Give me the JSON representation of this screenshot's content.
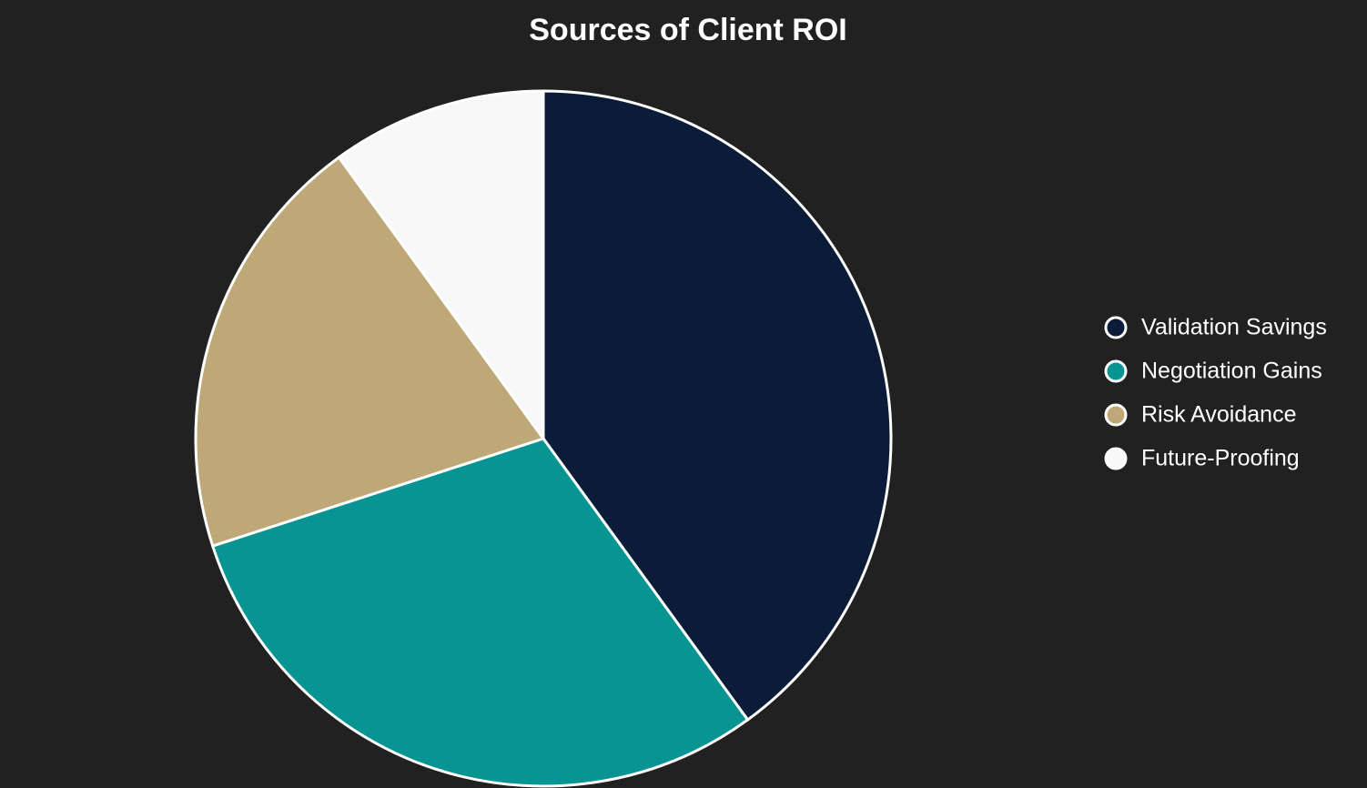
{
  "chart_data": {
    "type": "pie",
    "title": "Sources of Client ROI",
    "categories": [
      "Validation Savings",
      "Negotiation Gains",
      "Risk Avoidance",
      "Future-Proofing"
    ],
    "values": [
      40,
      30,
      20,
      10
    ],
    "colors": [
      "#0b1c38",
      "#079492",
      "#bfa878",
      "#f8f8f8"
    ],
    "legend": "right"
  }
}
